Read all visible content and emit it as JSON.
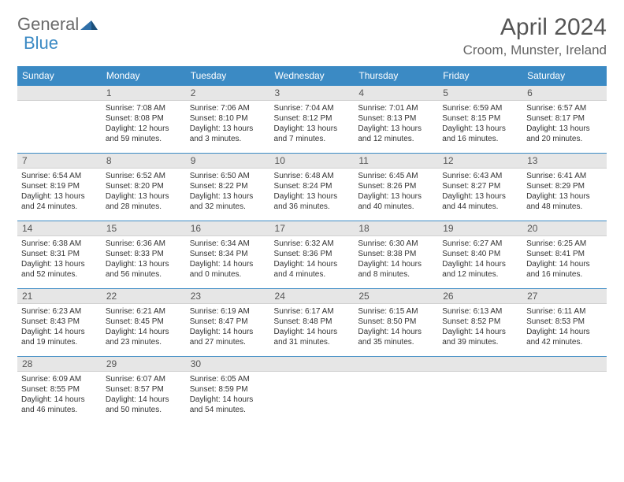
{
  "brand": {
    "part1": "General",
    "part2": "Blue"
  },
  "title": "April 2024",
  "location": "Croom, Munster, Ireland",
  "colors": {
    "header_bg": "#3b8ac4",
    "header_text": "#ffffff",
    "daynum_bg": "#e6e6e6",
    "border": "#3b8ac4",
    "body_text": "#333333",
    "page_bg": "#ffffff"
  },
  "typography": {
    "body_fontsize": 10,
    "header_fontsize": 12,
    "title_fontsize": 30,
    "location_fontsize": 17
  },
  "day_headers": [
    "Sunday",
    "Monday",
    "Tuesday",
    "Wednesday",
    "Thursday",
    "Friday",
    "Saturday"
  ],
  "weeks": [
    [
      null,
      {
        "n": "1",
        "sr": "Sunrise: 7:08 AM",
        "ss": "Sunset: 8:08 PM",
        "d1": "Daylight: 12 hours",
        "d2": "and 59 minutes."
      },
      {
        "n": "2",
        "sr": "Sunrise: 7:06 AM",
        "ss": "Sunset: 8:10 PM",
        "d1": "Daylight: 13 hours",
        "d2": "and 3 minutes."
      },
      {
        "n": "3",
        "sr": "Sunrise: 7:04 AM",
        "ss": "Sunset: 8:12 PM",
        "d1": "Daylight: 13 hours",
        "d2": "and 7 minutes."
      },
      {
        "n": "4",
        "sr": "Sunrise: 7:01 AM",
        "ss": "Sunset: 8:13 PM",
        "d1": "Daylight: 13 hours",
        "d2": "and 12 minutes."
      },
      {
        "n": "5",
        "sr": "Sunrise: 6:59 AM",
        "ss": "Sunset: 8:15 PM",
        "d1": "Daylight: 13 hours",
        "d2": "and 16 minutes."
      },
      {
        "n": "6",
        "sr": "Sunrise: 6:57 AM",
        "ss": "Sunset: 8:17 PM",
        "d1": "Daylight: 13 hours",
        "d2": "and 20 minutes."
      }
    ],
    [
      {
        "n": "7",
        "sr": "Sunrise: 6:54 AM",
        "ss": "Sunset: 8:19 PM",
        "d1": "Daylight: 13 hours",
        "d2": "and 24 minutes."
      },
      {
        "n": "8",
        "sr": "Sunrise: 6:52 AM",
        "ss": "Sunset: 8:20 PM",
        "d1": "Daylight: 13 hours",
        "d2": "and 28 minutes."
      },
      {
        "n": "9",
        "sr": "Sunrise: 6:50 AM",
        "ss": "Sunset: 8:22 PM",
        "d1": "Daylight: 13 hours",
        "d2": "and 32 minutes."
      },
      {
        "n": "10",
        "sr": "Sunrise: 6:48 AM",
        "ss": "Sunset: 8:24 PM",
        "d1": "Daylight: 13 hours",
        "d2": "and 36 minutes."
      },
      {
        "n": "11",
        "sr": "Sunrise: 6:45 AM",
        "ss": "Sunset: 8:26 PM",
        "d1": "Daylight: 13 hours",
        "d2": "and 40 minutes."
      },
      {
        "n": "12",
        "sr": "Sunrise: 6:43 AM",
        "ss": "Sunset: 8:27 PM",
        "d1": "Daylight: 13 hours",
        "d2": "and 44 minutes."
      },
      {
        "n": "13",
        "sr": "Sunrise: 6:41 AM",
        "ss": "Sunset: 8:29 PM",
        "d1": "Daylight: 13 hours",
        "d2": "and 48 minutes."
      }
    ],
    [
      {
        "n": "14",
        "sr": "Sunrise: 6:38 AM",
        "ss": "Sunset: 8:31 PM",
        "d1": "Daylight: 13 hours",
        "d2": "and 52 minutes."
      },
      {
        "n": "15",
        "sr": "Sunrise: 6:36 AM",
        "ss": "Sunset: 8:33 PM",
        "d1": "Daylight: 13 hours",
        "d2": "and 56 minutes."
      },
      {
        "n": "16",
        "sr": "Sunrise: 6:34 AM",
        "ss": "Sunset: 8:34 PM",
        "d1": "Daylight: 14 hours",
        "d2": "and 0 minutes."
      },
      {
        "n": "17",
        "sr": "Sunrise: 6:32 AM",
        "ss": "Sunset: 8:36 PM",
        "d1": "Daylight: 14 hours",
        "d2": "and 4 minutes."
      },
      {
        "n": "18",
        "sr": "Sunrise: 6:30 AM",
        "ss": "Sunset: 8:38 PM",
        "d1": "Daylight: 14 hours",
        "d2": "and 8 minutes."
      },
      {
        "n": "19",
        "sr": "Sunrise: 6:27 AM",
        "ss": "Sunset: 8:40 PM",
        "d1": "Daylight: 14 hours",
        "d2": "and 12 minutes."
      },
      {
        "n": "20",
        "sr": "Sunrise: 6:25 AM",
        "ss": "Sunset: 8:41 PM",
        "d1": "Daylight: 14 hours",
        "d2": "and 16 minutes."
      }
    ],
    [
      {
        "n": "21",
        "sr": "Sunrise: 6:23 AM",
        "ss": "Sunset: 8:43 PM",
        "d1": "Daylight: 14 hours",
        "d2": "and 19 minutes."
      },
      {
        "n": "22",
        "sr": "Sunrise: 6:21 AM",
        "ss": "Sunset: 8:45 PM",
        "d1": "Daylight: 14 hours",
        "d2": "and 23 minutes."
      },
      {
        "n": "23",
        "sr": "Sunrise: 6:19 AM",
        "ss": "Sunset: 8:47 PM",
        "d1": "Daylight: 14 hours",
        "d2": "and 27 minutes."
      },
      {
        "n": "24",
        "sr": "Sunrise: 6:17 AM",
        "ss": "Sunset: 8:48 PM",
        "d1": "Daylight: 14 hours",
        "d2": "and 31 minutes."
      },
      {
        "n": "25",
        "sr": "Sunrise: 6:15 AM",
        "ss": "Sunset: 8:50 PM",
        "d1": "Daylight: 14 hours",
        "d2": "and 35 minutes."
      },
      {
        "n": "26",
        "sr": "Sunrise: 6:13 AM",
        "ss": "Sunset: 8:52 PM",
        "d1": "Daylight: 14 hours",
        "d2": "and 39 minutes."
      },
      {
        "n": "27",
        "sr": "Sunrise: 6:11 AM",
        "ss": "Sunset: 8:53 PM",
        "d1": "Daylight: 14 hours",
        "d2": "and 42 minutes."
      }
    ],
    [
      {
        "n": "28",
        "sr": "Sunrise: 6:09 AM",
        "ss": "Sunset: 8:55 PM",
        "d1": "Daylight: 14 hours",
        "d2": "and 46 minutes."
      },
      {
        "n": "29",
        "sr": "Sunrise: 6:07 AM",
        "ss": "Sunset: 8:57 PM",
        "d1": "Daylight: 14 hours",
        "d2": "and 50 minutes."
      },
      {
        "n": "30",
        "sr": "Sunrise: 6:05 AM",
        "ss": "Sunset: 8:59 PM",
        "d1": "Daylight: 14 hours",
        "d2": "and 54 minutes."
      },
      null,
      null,
      null,
      null
    ]
  ]
}
